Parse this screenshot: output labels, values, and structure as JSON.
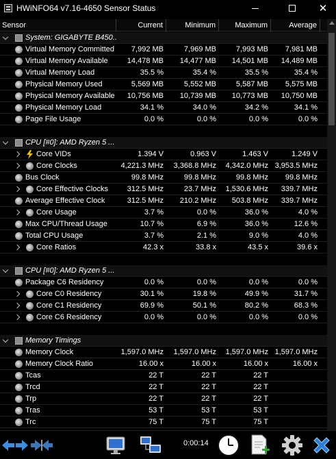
{
  "window": {
    "title": "HWiNFO64 v7.16-4650 Sensor Status",
    "close_glyph": "✕"
  },
  "columns": {
    "sensor": "Sensor",
    "current": "Current",
    "minimum": "Minimum",
    "maximum": "Maximum",
    "average": "Average"
  },
  "rows": [
    {
      "type": "group",
      "expanded": true,
      "name": "System: GIGABYTE B450..."
    },
    {
      "type": "sensor",
      "icon": "sensor",
      "name": "Virtual Memory Committed",
      "current": "7,992 MB",
      "min": "7,969 MB",
      "max": "7,993 MB",
      "avg": "7,981 MB"
    },
    {
      "type": "sensor",
      "icon": "sensor",
      "name": "Virtual Memory Available",
      "current": "14,478 MB",
      "min": "14,477 MB",
      "max": "14,501 MB",
      "avg": "14,489 MB"
    },
    {
      "type": "sensor",
      "icon": "sensor",
      "name": "Virtual Memory Load",
      "current": "35.5 %",
      "min": "35.4 %",
      "max": "35.5 %",
      "avg": "35.4 %"
    },
    {
      "type": "sensor",
      "icon": "sensor",
      "name": "Physical Memory Used",
      "current": "5,569 MB",
      "min": "5,552 MB",
      "max": "5,587 MB",
      "avg": "5,575 MB"
    },
    {
      "type": "sensor",
      "icon": "sensor",
      "name": "Physical Memory Available",
      "current": "10,756 MB",
      "min": "10,739 MB",
      "max": "10,773 MB",
      "avg": "10,750 MB"
    },
    {
      "type": "sensor",
      "icon": "sensor",
      "name": "Physical Memory Load",
      "current": "34.1 %",
      "min": "34.0 %",
      "max": "34.2 %",
      "avg": "34.1 %"
    },
    {
      "type": "sensor",
      "icon": "sensor",
      "name": "Page File Usage",
      "current": "0.0 %",
      "min": "0.0 %",
      "max": "0.0 %",
      "avg": "0.0 %"
    },
    {
      "type": "blank"
    },
    {
      "type": "group",
      "expanded": true,
      "name": "CPU [#0]: AMD Ryzen 5 ..."
    },
    {
      "type": "sensor",
      "expander": true,
      "icon": "bolt",
      "name": "Core VIDs",
      "current": "1.394 V",
      "min": "0.963 V",
      "max": "1.463 V",
      "avg": "1.249 V"
    },
    {
      "type": "sensor",
      "expander": true,
      "icon": "sensor",
      "name": "Core Clocks",
      "current": "4,221.3 MHz",
      "min": "3,368.8 MHz",
      "max": "4,342.0 MHz",
      "avg": "3,953.5 MHz"
    },
    {
      "type": "sensor",
      "icon": "sensor",
      "name": "Bus Clock",
      "current": "99.8 MHz",
      "min": "99.8 MHz",
      "max": "99.8 MHz",
      "avg": "99.8 MHz"
    },
    {
      "type": "sensor",
      "expander": true,
      "icon": "sensor",
      "name": "Core Effective Clocks",
      "current": "312.5 MHz",
      "min": "23.7 MHz",
      "max": "1,530.6 MHz",
      "avg": "339.7 MHz"
    },
    {
      "type": "sensor",
      "icon": "sensor",
      "name": "Average Effective Clock",
      "current": "312.5 MHz",
      "min": "210.2 MHz",
      "max": "503.8 MHz",
      "avg": "339.7 MHz"
    },
    {
      "type": "sensor",
      "expander": true,
      "icon": "sensor",
      "name": "Core Usage",
      "current": "3.7 %",
      "min": "0.0 %",
      "max": "36.0 %",
      "avg": "4.0 %"
    },
    {
      "type": "sensor",
      "icon": "sensor",
      "name": "Max CPU/Thread Usage",
      "current": "10.7 %",
      "min": "6.9 %",
      "max": "36.0 %",
      "avg": "12.6 %"
    },
    {
      "type": "sensor",
      "icon": "sensor",
      "name": "Total CPU Usage",
      "current": "3.7 %",
      "min": "2.1 %",
      "max": "9.0 %",
      "avg": "4.0 %"
    },
    {
      "type": "sensor",
      "expander": true,
      "icon": "sensor",
      "name": "Core Ratios",
      "current": "42.3 x",
      "min": "33.8 x",
      "max": "43.5 x",
      "avg": "39.6 x"
    },
    {
      "type": "blank"
    },
    {
      "type": "group",
      "expanded": true,
      "name": "CPU [#0]: AMD Ryzen 5 ..."
    },
    {
      "type": "sensor",
      "icon": "sensor",
      "name": "Package C6 Residency",
      "current": "0.0 %",
      "min": "0.0 %",
      "max": "0.0 %",
      "avg": "0.0 %"
    },
    {
      "type": "sensor",
      "expander": true,
      "icon": "sensor",
      "name": "Core C0 Residency",
      "current": "30.1 %",
      "min": "19.8 %",
      "max": "49.9 %",
      "avg": "31.7 %"
    },
    {
      "type": "sensor",
      "expander": true,
      "icon": "sensor",
      "name": "Core C1 Residency",
      "current": "69.9 %",
      "min": "50.1 %",
      "max": "80.2 %",
      "avg": "68.3 %"
    },
    {
      "type": "sensor",
      "expander": true,
      "icon": "sensor",
      "name": "Core C6 Residency",
      "current": "0.0 %",
      "min": "0.0 %",
      "max": "0.0 %",
      "avg": "0.0 %"
    },
    {
      "type": "blank"
    },
    {
      "type": "group",
      "expanded": true,
      "name": "Memory Timings"
    },
    {
      "type": "sensor",
      "icon": "sensor",
      "name": "Memory Clock",
      "current": "1,597.0 MHz",
      "min": "1,597.0 MHz",
      "max": "1,597.0 MHz",
      "avg": "1,597.0 MHz"
    },
    {
      "type": "sensor",
      "icon": "sensor",
      "name": "Memory Clock Ratio",
      "current": "16.00 x",
      "min": "16.00 x",
      "max": "16.00 x",
      "avg": "16.00 x"
    },
    {
      "type": "sensor",
      "icon": "sensor",
      "name": "Tcas",
      "current": "22 T",
      "min": "22 T",
      "max": "22 T",
      "avg": ""
    },
    {
      "type": "sensor",
      "icon": "sensor",
      "name": "Trcd",
      "current": "22 T",
      "min": "22 T",
      "max": "22 T",
      "avg": ""
    },
    {
      "type": "sensor",
      "icon": "sensor",
      "name": "Trp",
      "current": "22 T",
      "min": "22 T",
      "max": "22 T",
      "avg": ""
    },
    {
      "type": "sensor",
      "icon": "sensor",
      "name": "Tras",
      "current": "53 T",
      "min": "53 T",
      "max": "53 T",
      "avg": ""
    },
    {
      "type": "sensor",
      "icon": "sensor",
      "name": "Trc",
      "current": "75 T",
      "min": "75 T",
      "max": "75 T",
      "avg": ""
    }
  ],
  "toolbar": {
    "timer": "0:00:14"
  },
  "colors": {
    "background": "#000000",
    "group_row": "#111111",
    "arrow_blue": "#3b8fe0",
    "close_blue": "#2a7fd4"
  }
}
